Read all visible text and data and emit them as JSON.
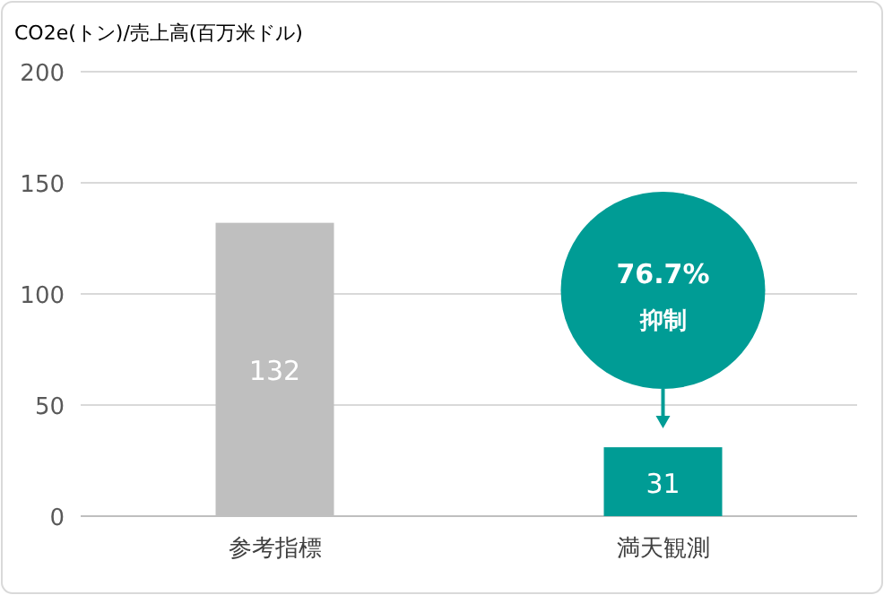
{
  "chart_data": {
    "type": "bar",
    "ylabel": "CO2e(トン)/売上高(百万米ドル)",
    "categories": [
      "参考指標",
      "満天観測"
    ],
    "values": [
      132,
      31
    ],
    "colors": [
      "#bfbfbf",
      "#009c95"
    ],
    "ylim": [
      0,
      200
    ],
    "yticks": [
      0,
      50,
      100,
      150,
      200
    ],
    "grid": "y",
    "data_labels": true,
    "annotations": [
      "76.7%",
      "抑制"
    ]
  }
}
